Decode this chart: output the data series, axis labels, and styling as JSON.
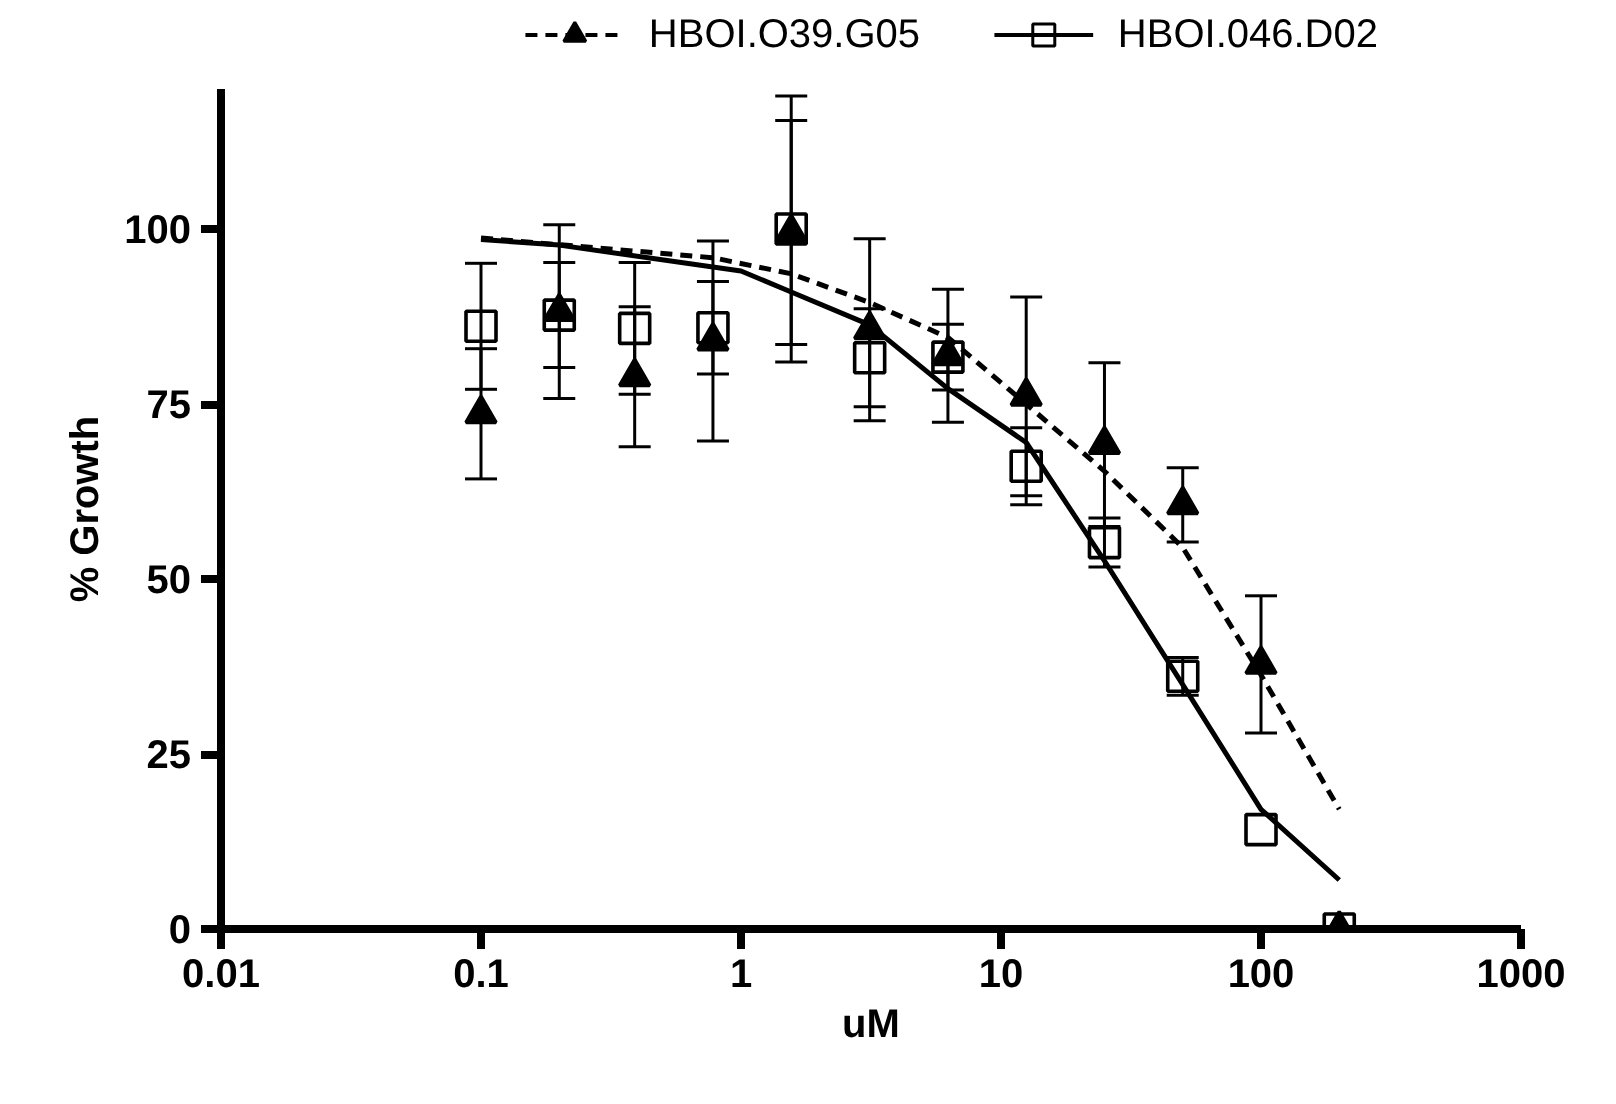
{
  "chart_data": {
    "type": "scatter",
    "xlabel": "uM",
    "ylabel": "% Growth",
    "log": "x",
    "xlim": [
      0.01,
      1000
    ],
    "xticks": [
      0.01,
      0.1,
      1,
      10,
      100,
      1000
    ],
    "ylim": [
      0,
      120
    ],
    "yticks": [
      0,
      25,
      50,
      75,
      100
    ],
    "grid": false,
    "legend": "top",
    "series": [
      {
        "type": "line",
        "line_style": "dashed",
        "marker": "none",
        "color": "#000000",
        "x": [
          0.1,
          0.78,
          1.56,
          3.125,
          6.25,
          12.5,
          25,
          50,
          100,
          200
        ],
        "values": [
          98.7,
          95.9,
          93.6,
          89.5,
          84.5,
          75,
          65.4,
          54.5,
          36.3,
          17.1
        ]
      },
      {
        "name": "HBOI.O39.G05",
        "line_style": "dashed",
        "marker": "triangle",
        "color": "#000000",
        "x": [
          0.1,
          0.2,
          0.39,
          0.78,
          1.56,
          3.125,
          6.25,
          12.5,
          25,
          50,
          100,
          200
        ],
        "values": [
          73.6,
          88.2,
          78.9,
          84,
          99.5,
          85.6,
          81.9,
          76.1,
          69.2,
          60.6,
          37.8,
          0
        ],
        "errors": [
          9.3,
          12.4,
          10,
          14.3,
          16,
          13,
          9.5,
          14.2,
          11.7,
          5.3,
          9.8,
          null
        ]
      },
      {
        "type": "line",
        "line_style": "solid",
        "marker": "none",
        "color": "#000000",
        "x": [
          0.1,
          0.2,
          1,
          1.56,
          3.125,
          6.25,
          12.5,
          25,
          50,
          100,
          200
        ],
        "values": [
          98.5,
          97.7,
          94,
          91,
          86.3,
          77.2,
          69.5,
          52.6,
          34.9,
          17.1,
          7
        ]
      },
      {
        "name": "HBOI.046.D02",
        "line_style": "solid",
        "marker": "square",
        "color": "#000000",
        "x": [
          0.1,
          0.2,
          0.39,
          0.78,
          1.56,
          3.125,
          6.25,
          12.5,
          25,
          50,
          100,
          200
        ],
        "values": [
          86.1,
          87.7,
          85.8,
          85.9,
          100,
          81.6,
          81.7,
          66.1,
          55.2,
          36.1,
          14.2,
          0
        ],
        "errors": [
          9,
          7.5,
          9.4,
          6.6,
          19,
          7,
          4.7,
          5.5,
          3.5,
          2.7,
          null,
          null
        ]
      }
    ]
  }
}
